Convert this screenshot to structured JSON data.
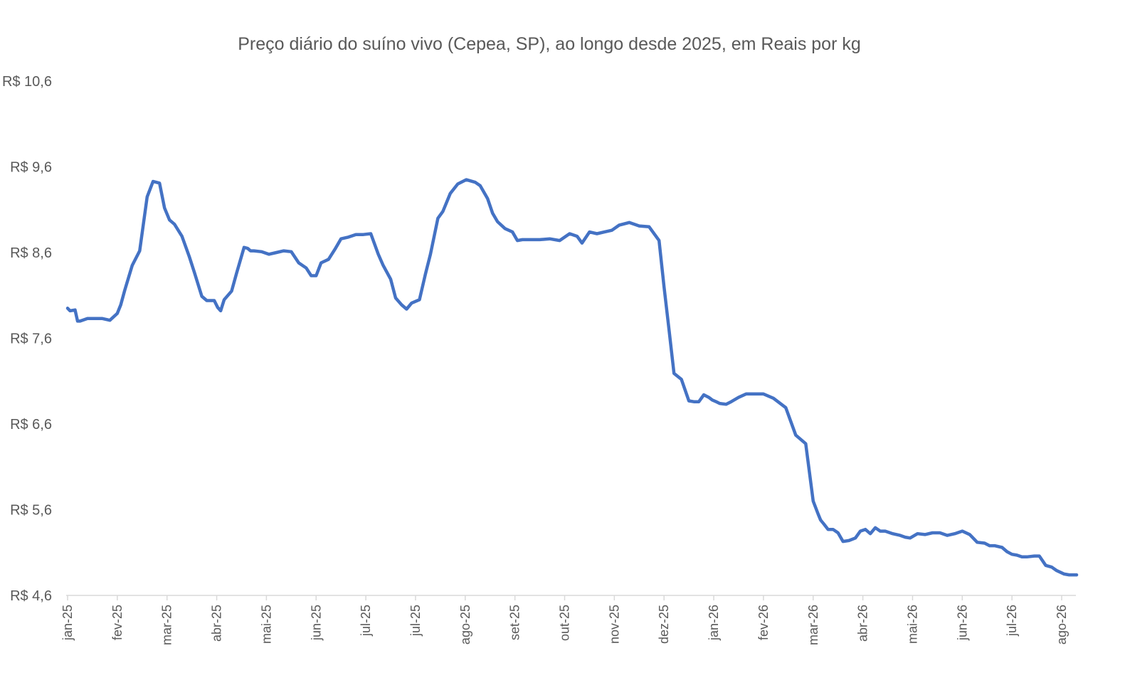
{
  "chart_data": {
    "type": "line",
    "title": "Preço diário do suíno vivo (Cepea, SP), ao longo desde 2025, em Reais por kg",
    "xlabel": "",
    "ylabel": "",
    "ylim": [
      4.6,
      10.6
    ],
    "yticks": [
      "R$ 4,6",
      "R$ 5,6",
      "R$ 6,6",
      "R$ 7,6",
      "R$ 8,6",
      "R$ 9,6",
      "R$ 10,6"
    ],
    "ytick_values": [
      4.6,
      5.6,
      6.6,
      7.6,
      8.6,
      9.6,
      10.6
    ],
    "xticks": [
      "jan-25",
      "fev-25",
      "mar-25",
      "abr-25",
      "mai-25",
      "jun-25",
      "jul-25",
      "jul-25",
      "ago-25",
      "set-25",
      "out-25",
      "nov-25",
      "dez-25",
      "jan-26",
      "fev-26",
      "mar-26",
      "abr-26",
      "mai-26",
      "jun-26",
      "jul-26",
      "ago-26"
    ],
    "x_range": [
      0,
      20.5
    ],
    "grid": false,
    "legend": "none",
    "series": [
      {
        "color": "#4472c4",
        "x": [
          0,
          0.05,
          0.15,
          0.2,
          0.25,
          0.4,
          0.55,
          0.7,
          0.85,
          1,
          1.07,
          1.15,
          1.3,
          1.45,
          1.6,
          1.72,
          1.85,
          1.95,
          2.05,
          2.15,
          2.3,
          2.45,
          2.55,
          2.7,
          2.8,
          2.95,
          3.02,
          3.08,
          3.15,
          3.3,
          3.4,
          3.55,
          3.62,
          3.68,
          3.75,
          3.9,
          4.05,
          4.2,
          4.35,
          4.5,
          4.65,
          4.8,
          4.9,
          5,
          5.1,
          5.25,
          5.38,
          5.5,
          5.65,
          5.8,
          5.95,
          6.1,
          6.25,
          6.35,
          6.5,
          6.6,
          6.72,
          6.82,
          6.92,
          7,
          7.08,
          7.2,
          7.3,
          7.45,
          7.55,
          7.7,
          7.85,
          8.02,
          8.2,
          8.3,
          8.45,
          8.55,
          8.65,
          8.8,
          8.95,
          9.05,
          9.15,
          9.3,
          9.5,
          9.7,
          9.9,
          10.1,
          10.25,
          10.35,
          10.5,
          10.65,
          10.8,
          10.95,
          11.1,
          11.3,
          11.5,
          11.7,
          11.9,
          12,
          12.1,
          12.2,
          12.35,
          12.5,
          12.6,
          12.7,
          12.8,
          12.9,
          12.97,
          13.05,
          13.12,
          13.25,
          13.35,
          13.5,
          13.65,
          13.8,
          14,
          14.2,
          14.45,
          14.65,
          14.85,
          15,
          15.1,
          15.15,
          15.22,
          15.3,
          15.4,
          15.5,
          15.6,
          15.72,
          15.85,
          15.95,
          16.05,
          16.15,
          16.25,
          16.35,
          16.45,
          16.6,
          16.75,
          16.85,
          16.95,
          17.1,
          17.25,
          17.4,
          17.55,
          17.7,
          17.85,
          18,
          18.15,
          18.3,
          18.45,
          18.55,
          18.65,
          18.8,
          18.9,
          19,
          19.1,
          19.2,
          19.3,
          19.45,
          19.55,
          19.68,
          19.8,
          19.9,
          20.05,
          20.15,
          20.3
        ],
        "values": [
          7.95,
          7.92,
          7.93,
          7.8,
          7.8,
          7.83,
          7.83,
          7.83,
          7.81,
          7.89,
          7.99,
          8.16,
          8.45,
          8.62,
          9.25,
          9.43,
          9.41,
          9.12,
          8.98,
          8.93,
          8.79,
          8.55,
          8.37,
          8.09,
          8.04,
          8.04,
          7.96,
          7.92,
          8.05,
          8.15,
          8.36,
          8.66,
          8.65,
          8.62,
          8.62,
          8.61,
          8.58,
          8.6,
          8.62,
          8.61,
          8.48,
          8.42,
          8.33,
          8.33,
          8.48,
          8.52,
          8.64,
          8.76,
          8.78,
          8.81,
          8.81,
          8.82,
          8.58,
          8.45,
          8.29,
          8.07,
          7.99,
          7.94,
          8.01,
          8.03,
          8.05,
          8.35,
          8.58,
          9.0,
          9.08,
          9.29,
          9.4,
          9.45,
          9.42,
          9.38,
          9.23,
          9.06,
          8.96,
          8.88,
          8.84,
          8.74,
          8.75,
          8.75,
          8.75,
          8.76,
          8.74,
          8.82,
          8.79,
          8.71,
          8.84,
          8.82,
          8.84,
          8.86,
          8.92,
          8.95,
          8.91,
          8.9,
          8.74,
          8.2,
          7.7,
          7.19,
          7.12,
          6.87,
          6.86,
          6.86,
          6.94,
          6.91,
          6.88,
          6.86,
          6.84,
          6.83,
          6.86,
          6.91,
          6.95,
          6.95,
          6.95,
          6.9,
          6.79,
          6.47,
          6.37,
          5.7,
          5.55,
          5.48,
          5.43,
          5.37,
          5.37,
          5.33,
          5.23,
          5.24,
          5.27,
          5.35,
          5.37,
          5.32,
          5.39,
          5.35,
          5.35,
          5.32,
          5.3,
          5.28,
          5.27,
          5.32,
          5.31,
          5.33,
          5.33,
          5.3,
          5.32,
          5.35,
          5.31,
          5.22,
          5.21,
          5.18,
          5.18,
          5.16,
          5.11,
          5.08,
          5.07,
          5.05,
          5.05,
          5.06,
          5.06,
          4.95,
          4.93,
          4.89,
          4.85,
          4.84,
          4.84
        ]
      }
    ]
  }
}
